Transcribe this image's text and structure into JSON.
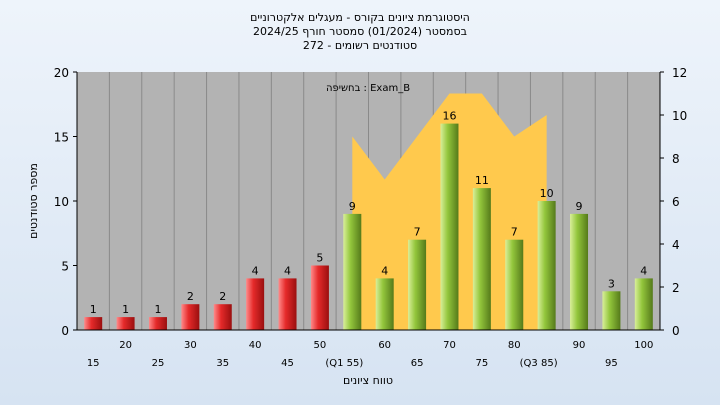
{
  "chart_data": {
    "type": "bar",
    "title_lines": [
      "היסטוגרמת ציונים בקורס - מעגלים אלקטרוניים",
      "בסמסטר  (01/2024)  סמסטר חורף 2024/25",
      "סטודנטים רשומים - 272"
    ],
    "exam_label": "בחשיפה : Exam_B",
    "xlabel": "טווח ציונים",
    "ylabel": "מספר סטודנטים",
    "ylim": [
      0,
      20
    ],
    "yticks": [
      "0",
      "5",
      "10",
      "15",
      "20"
    ],
    "y2lim": [
      0,
      12
    ],
    "y2ticks": [
      "0",
      "2",
      "4",
      "6",
      "8",
      "10",
      "12"
    ],
    "categories": [
      "15",
      "20",
      "25",
      "30",
      "35",
      "40",
      "45",
      "50",
      "(Q1 55)",
      "60",
      "65",
      "70",
      "75",
      "80",
      "(Q3 85)",
      "90",
      "95",
      "100"
    ],
    "values": [
      1,
      1,
      1,
      2,
      2,
      4,
      4,
      5,
      9,
      4,
      7,
      16,
      11,
      7,
      10,
      9,
      3,
      4
    ],
    "value_labels": [
      "1",
      "1",
      "1",
      "2",
      "2",
      "4",
      "4",
      "5",
      "9",
      "4",
      "7",
      "16",
      "11",
      "7",
      "10",
      "9",
      "3",
      "4"
    ],
    "area_series": {
      "x_index": [
        8,
        9,
        10,
        11,
        12,
        13,
        14
      ],
      "values": [
        9,
        7,
        9,
        11,
        11,
        9,
        10
      ]
    },
    "colors": {
      "low_bar": "#e02a2a",
      "high_bar": "#8ec23a",
      "area": "#ffc94d",
      "plot_bg": "#b3b3b3"
    },
    "grid": true
  }
}
